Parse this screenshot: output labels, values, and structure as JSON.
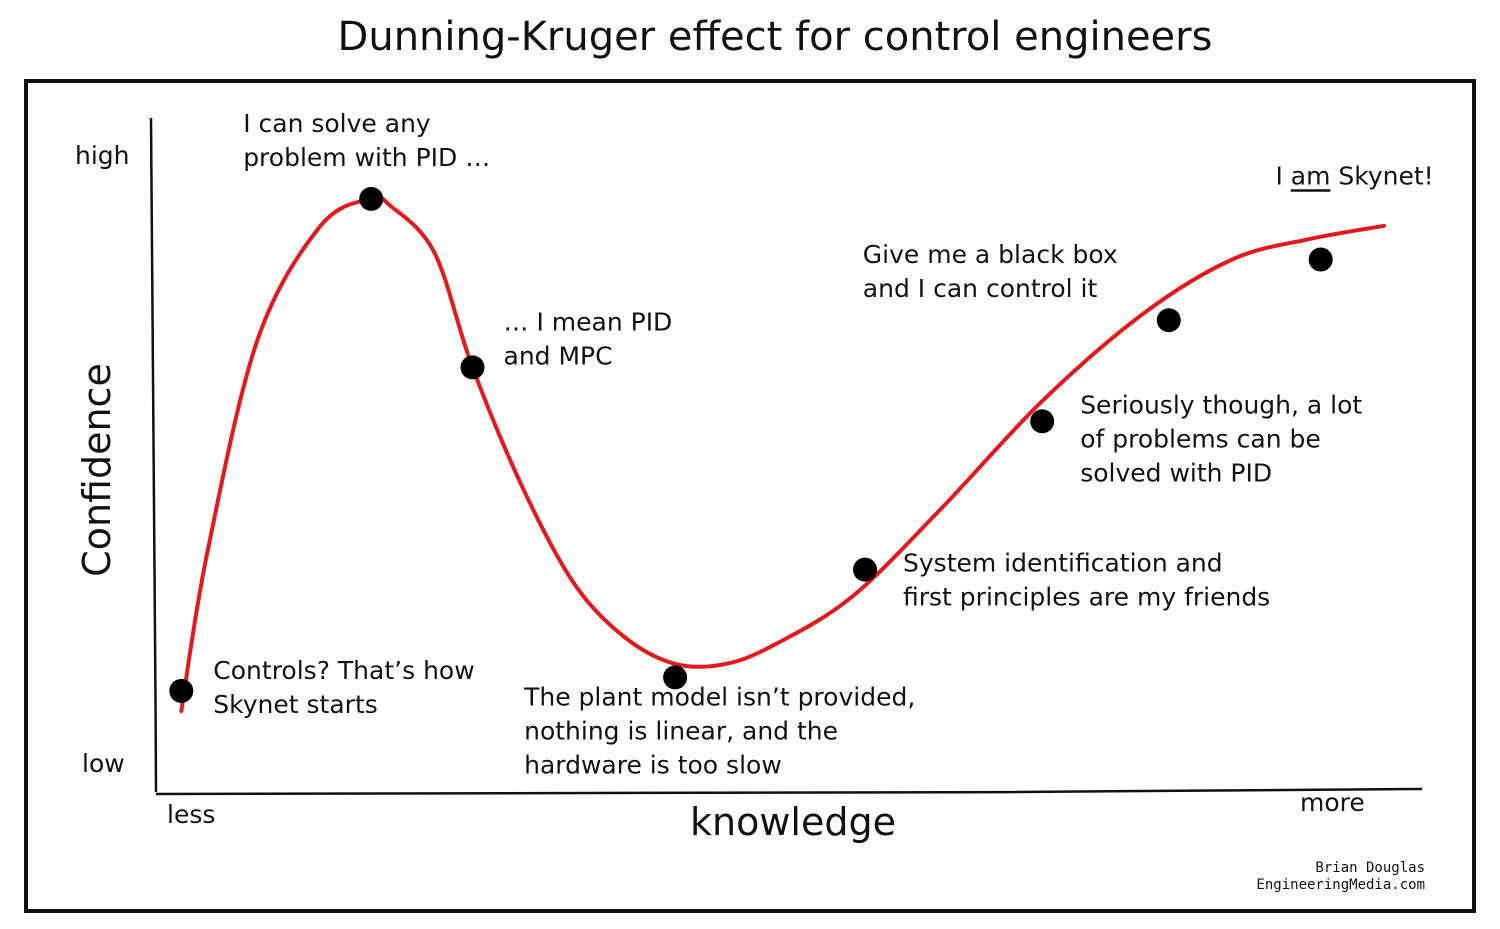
{
  "chart_data": {
    "type": "line",
    "title": "Dunning-Kruger effect for control engineers",
    "xlabel": "knowledge",
    "ylabel": "Confidence",
    "x_ticks": {
      "min_label": "less",
      "max_label": "more"
    },
    "y_ticks": {
      "min_label": "low",
      "max_label": "high"
    },
    "xlim": [
      0,
      1
    ],
    "ylim": [
      0,
      1
    ],
    "grid": false,
    "line_color": "#e3191b",
    "point_color": "#000000",
    "curve": {
      "x": [
        0.02,
        0.04,
        0.08,
        0.13,
        0.17,
        0.185,
        0.22,
        0.25,
        0.29,
        0.33,
        0.37,
        0.41,
        0.45,
        0.49,
        0.55,
        0.62,
        0.7,
        0.78,
        0.85,
        0.91,
        0.97
      ],
      "y": [
        0.12,
        0.35,
        0.67,
        0.84,
        0.88,
        0.87,
        0.8,
        0.63,
        0.45,
        0.31,
        0.23,
        0.19,
        0.19,
        0.22,
        0.29,
        0.42,
        0.58,
        0.71,
        0.79,
        0.82,
        0.84
      ]
    },
    "points": [
      {
        "x": 0.02,
        "y": 0.15,
        "label_lines": [
          "Controls? That’s how",
          "Skynet starts"
        ]
      },
      {
        "x": 0.17,
        "y": 0.88,
        "label_lines": [
          "I can solve any",
          "problem with PID …"
        ]
      },
      {
        "x": 0.25,
        "y": 0.63,
        "label_lines": [
          "… I mean PID",
          "and MPC"
        ]
      },
      {
        "x": 0.41,
        "y": 0.17,
        "label_lines": [
          "The plant model isn’t provided,",
          "nothing is linear, and the",
          "hardware is too slow"
        ]
      },
      {
        "x": 0.56,
        "y": 0.33,
        "label_lines": [
          "System identification and",
          "first principles are my friends"
        ]
      },
      {
        "x": 0.7,
        "y": 0.55,
        "label_lines": [
          "Seriously though, a lot",
          "of problems can be",
          "solved with PID"
        ]
      },
      {
        "x": 0.8,
        "y": 0.7,
        "label_lines": [
          "Give me a black box",
          "and I can control it"
        ]
      },
      {
        "x": 0.92,
        "y": 0.79,
        "label_lines": [
          "I am Skynet!"
        ]
      }
    ]
  },
  "credit": {
    "author": "Brian Douglas",
    "site": "EngineeringMedia.com"
  }
}
